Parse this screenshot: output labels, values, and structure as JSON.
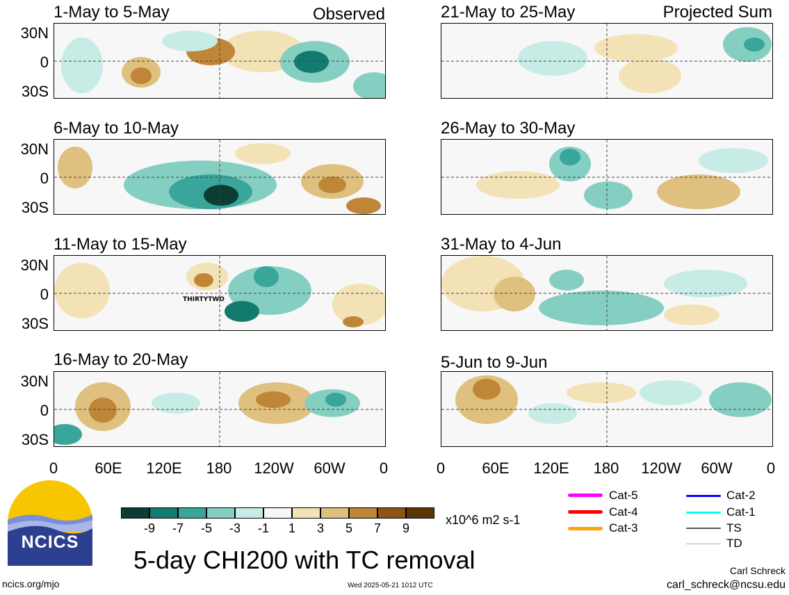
{
  "panels": {
    "left": [
      {
        "period": "1-May to 5-May",
        "tag": "Observed"
      },
      {
        "period": "6-May to 10-May",
        "tag": ""
      },
      {
        "period": "11-May to 15-May",
        "tag": ""
      },
      {
        "period": "16-May to 20-May",
        "tag": ""
      }
    ],
    "right": [
      {
        "period": "21-May to 25-May",
        "tag": "Projected Sum"
      },
      {
        "period": "26-May to 30-May",
        "tag": ""
      },
      {
        "period": "31-May to 4-Jun",
        "tag": ""
      },
      {
        "period": "5-Jun to 9-Jun",
        "tag": ""
      }
    ]
  },
  "lat_labels": [
    "30N",
    "0",
    "30S"
  ],
  "lon_labels": [
    "0",
    "60E",
    "120E",
    "180",
    "120W",
    "60W",
    "0"
  ],
  "storm_label": "THIRTYTWO",
  "colorbar": {
    "labels": [
      "-9",
      "-7",
      "-5",
      "-3",
      "-1",
      "1",
      "3",
      "5",
      "7",
      "9"
    ],
    "colors": [
      "#0b3d35",
      "#137a70",
      "#3aa59a",
      "#84cfc2",
      "#c6ece5",
      "#f7f7f7",
      "#f3e2b6",
      "#dfc07e",
      "#bf8638",
      "#8c5415",
      "#5c3507"
    ],
    "units": "x10^6 m2 s-1"
  },
  "legend": {
    "items": [
      {
        "label": "Cat-5",
        "color": "#ff00ff"
      },
      {
        "label": "Cat-4",
        "color": "#ff0000"
      },
      {
        "label": "Cat-3",
        "color": "#ffa500"
      },
      {
        "label": "Cat-2",
        "color": "#0000ff"
      },
      {
        "label": "Cat-1",
        "color": "#00ffff"
      },
      {
        "label": "TS",
        "color": "#555555"
      },
      {
        "label": "TD",
        "color": "#b0b0b0"
      }
    ]
  },
  "logo_text": "NCICS",
  "main_title": "5-day CHI200 with TC removal",
  "footer": {
    "left": "ncics.org/mjo",
    "timestamp": "Wed 2025-05-21 1012 UTC",
    "author": "Carl Schreck",
    "email": "carl_schreck@ncsu.edu"
  }
}
